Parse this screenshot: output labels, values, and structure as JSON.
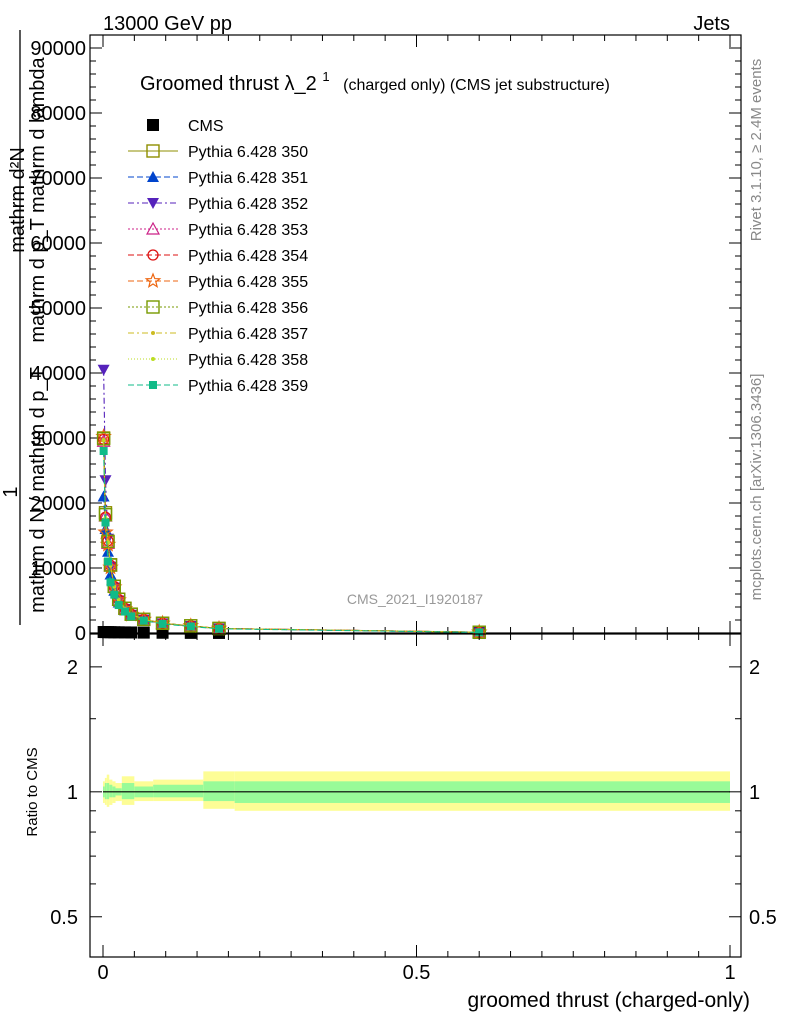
{
  "header": {
    "left": "13000 GeV pp",
    "right": "Jets"
  },
  "side_labels": {
    "rivet": "Rivet 3.1.10, ≥ 2.4M events",
    "mcplots": "mcplots.cern.ch [arXiv:1306.3436]"
  },
  "watermark": "CMS_2021_I1920187",
  "chart_data": [
    {
      "type": "line",
      "title_main": "Groomed thrust",
      "title_symbol": "λ_2",
      "title_sup": "1",
      "title_rest": "(charged only) (CMS jet substructure)",
      "ylabel_parts": [
        "mathrm d²N",
        "mathrm d N / mathrm d p_T mathrm d lambda",
        "1",
        "mathrm d N / mathrm d p_T"
      ],
      "ylabel_top": "mathrm d²N",
      "ylabel_mid": "mathrm d p_T mathrm d lambda",
      "ylabel_one": "1",
      "ylabel_bottom": "mathrm d N / mathrm d p_T",
      "xlim": [
        -0.02,
        1.0
      ],
      "ylim": [
        0,
        92000
      ],
      "y_ticks": [
        0,
        10000,
        20000,
        30000,
        40000,
        50000,
        60000,
        70000,
        80000,
        90000
      ],
      "y_tick_labels": [
        "0",
        "10000",
        "20000",
        "30000",
        "40000",
        "50000",
        "60000",
        "70000",
        "80000",
        "90000"
      ],
      "legend_position": "top-left",
      "series": [
        {
          "name": "CMS",
          "color": "#000000",
          "marker": "square-filled",
          "dash": "none",
          "x": [
            0.001,
            0.004,
            0.008,
            0.012,
            0.018,
            0.025,
            0.035,
            0.045,
            0.065,
            0.095,
            0.14,
            0.185,
            0.6
          ],
          "y": [
            150,
            140,
            130,
            120,
            110,
            100,
            90,
            80,
            60,
            40,
            20,
            10,
            5
          ]
        },
        {
          "name": "Pythia 6.428 350",
          "color": "#8f8f00",
          "marker": "square-open",
          "dash": "none",
          "x": [
            0.001,
            0.004,
            0.008,
            0.012,
            0.018,
            0.025,
            0.035,
            0.045,
            0.065,
            0.095,
            0.14,
            0.185,
            0.6
          ],
          "y": [
            30000,
            18500,
            14000,
            10500,
            7200,
            5200,
            3800,
            2900,
            2100,
            1500,
            1100,
            700,
            120
          ]
        },
        {
          "name": "Pythia 6.428 351",
          "color": "#0044cc",
          "marker": "triangle-up-filled",
          "dash": "6,3",
          "x": [
            0.001,
            0.004,
            0.008,
            0.012,
            0.018,
            0.025,
            0.035,
            0.045,
            0.065,
            0.095,
            0.14,
            0.185,
            0.6
          ],
          "y": [
            21000,
            16000,
            12500,
            9000,
            6500,
            4700,
            3500,
            2700,
            2000,
            1450,
            1050,
            680,
            110
          ]
        },
        {
          "name": "Pythia 6.428 352",
          "color": "#5522bb",
          "marker": "triangle-down-filled",
          "dash": "6,3,2,3",
          "x": [
            0.001,
            0.004,
            0.008,
            0.012,
            0.018,
            0.025,
            0.035,
            0.045,
            0.065,
            0.095,
            0.14,
            0.185,
            0.6
          ],
          "y": [
            40500,
            23500,
            14500,
            10200,
            7000,
            5000,
            3700,
            2800,
            2050,
            1480,
            1080,
            690,
            115
          ]
        },
        {
          "name": "Pythia 6.428 353",
          "color": "#cc2288",
          "marker": "triangle-up-open",
          "dash": "2,2",
          "x": [
            0.001,
            0.004,
            0.008,
            0.012,
            0.018,
            0.025,
            0.035,
            0.045,
            0.065,
            0.095,
            0.14,
            0.185,
            0.6
          ],
          "y": [
            29500,
            18000,
            13800,
            10300,
            7100,
            5100,
            3750,
            2850,
            2080,
            1490,
            1090,
            695,
            118
          ]
        },
        {
          "name": "Pythia 6.428 354",
          "color": "#dd1111",
          "marker": "circle-open",
          "dash": "6,3",
          "x": [
            0.001,
            0.004,
            0.008,
            0.012,
            0.018,
            0.025,
            0.035,
            0.045,
            0.065,
            0.095,
            0.14,
            0.185,
            0.6
          ],
          "y": [
            29800,
            17800,
            14200,
            10400,
            7150,
            5150,
            3780,
            2880,
            2090,
            1500,
            1095,
            698,
            119
          ]
        },
        {
          "name": "Pythia 6.428 355",
          "color": "#ee6611",
          "marker": "star-open",
          "dash": "6,3",
          "x": [
            0.001,
            0.004,
            0.008,
            0.012,
            0.018,
            0.025,
            0.035,
            0.045,
            0.065,
            0.095,
            0.14,
            0.185,
            0.6
          ],
          "y": [
            30200,
            15500,
            13600,
            10100,
            7050,
            5050,
            3720,
            2830,
            2070,
            1485,
            1085,
            692,
            117
          ]
        },
        {
          "name": "Pythia 6.428 356",
          "color": "#779900",
          "marker": "square-open",
          "dash": "2,2",
          "x": [
            0.001,
            0.004,
            0.008,
            0.012,
            0.018,
            0.025,
            0.035,
            0.045,
            0.065,
            0.095,
            0.14,
            0.185,
            0.6
          ],
          "y": [
            29900,
            18200,
            14100,
            10450,
            7180,
            5180,
            3790,
            2890,
            2095,
            1505,
            1098,
            699,
            119
          ]
        },
        {
          "name": "Pythia 6.428 357",
          "color": "#ccbb22",
          "marker": "dot",
          "dash": "6,3,2,3",
          "x": [
            0.001,
            0.004,
            0.008,
            0.012,
            0.018,
            0.025,
            0.035,
            0.045,
            0.065,
            0.095,
            0.14,
            0.185,
            0.6
          ],
          "y": [
            29600,
            17600,
            13900,
            10350,
            7120,
            5120,
            3760,
            2860,
            2085,
            1495,
            1092,
            696,
            118
          ]
        },
        {
          "name": "Pythia 6.428 358",
          "color": "#bbdd22",
          "marker": "dot",
          "dash": "1,2",
          "x": [
            0.001,
            0.004,
            0.008,
            0.012,
            0.018,
            0.025,
            0.035,
            0.045,
            0.065,
            0.095,
            0.14,
            0.185,
            0.6
          ],
          "y": [
            29700,
            17700,
            14000,
            10380,
            7130,
            5130,
            3770,
            2870,
            2088,
            1498,
            1094,
            697,
            118
          ]
        },
        {
          "name": "Pythia 6.428 359",
          "color": "#11bb88",
          "marker": "square-filled-small",
          "dash": "6,3",
          "x": [
            0.001,
            0.004,
            0.008,
            0.012,
            0.018,
            0.025,
            0.035,
            0.045,
            0.065,
            0.095,
            0.14,
            0.185,
            0.6
          ],
          "y": [
            28000,
            17000,
            11000,
            7800,
            5900,
            4300,
            3300,
            2550,
            1900,
            1400,
            1000,
            650,
            100
          ]
        }
      ]
    },
    {
      "type": "band",
      "ylabel": "Ratio to CMS",
      "xlabel": "groomed thrust (charged-only)",
      "xlim": [
        -0.02,
        1.0
      ],
      "ylim": [
        0.4,
        2.4
      ],
      "y_scale": "log",
      "y_ticks": [
        0.5,
        1,
        2
      ],
      "y_tick_labels": [
        "0.5",
        "1",
        "2"
      ],
      "x_ticks": [
        0,
        0.5,
        1
      ],
      "x_tick_labels": [
        "0",
        "0.5",
        "1"
      ],
      "bins": [
        0.0,
        0.003,
        0.006,
        0.01,
        0.015,
        0.02,
        0.03,
        0.05,
        0.08,
        0.16,
        0.21,
        1.0
      ],
      "yellow_band": [
        [
          0.94,
          1.06
        ],
        [
          0.93,
          1.08
        ],
        [
          0.92,
          1.1
        ],
        [
          0.93,
          1.07
        ],
        [
          0.94,
          1.06
        ],
        [
          0.95,
          1.05
        ],
        [
          0.93,
          1.09
        ],
        [
          0.95,
          1.06
        ],
        [
          0.95,
          1.07
        ],
        [
          0.91,
          1.12
        ],
        [
          0.9,
          1.12
        ]
      ],
      "green_band": [
        [
          0.97,
          1.03
        ],
        [
          0.96,
          1.05
        ],
        [
          0.96,
          1.05
        ],
        [
          0.97,
          1.04
        ],
        [
          0.97,
          1.03
        ],
        [
          0.98,
          1.02
        ],
        [
          0.96,
          1.05
        ],
        [
          0.97,
          1.03
        ],
        [
          0.97,
          1.04
        ],
        [
          0.95,
          1.06
        ],
        [
          0.94,
          1.06
        ]
      ],
      "reference_line": 1
    }
  ]
}
